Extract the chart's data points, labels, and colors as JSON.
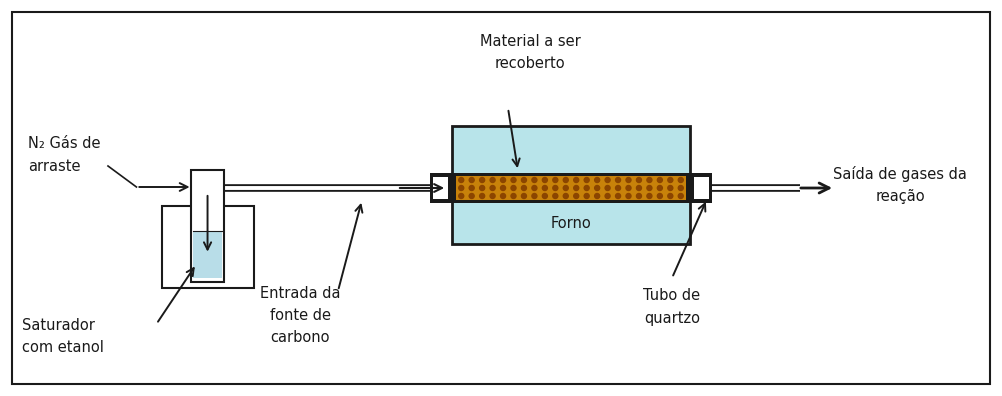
{
  "bg_color": "#ffffff",
  "border_color": "#333333",
  "light_blue": "#b8e4ea",
  "dark_brown": "#c8820a",
  "dark_gray": "#1a1a1a",
  "saturator_liquid": "#b8dde8",
  "fig_width": 10.02,
  "fig_height": 3.96,
  "labels": {
    "n2_gas_line1": "N₂ Gás de",
    "n2_gas_line2": "arraste",
    "saturador_line1": "Saturador",
    "saturador_line2": "com etanol",
    "entrada_line1": "Entrada da",
    "entrada_line2": "fonte de",
    "entrada_line3": "carbono",
    "material_line1": "Material a ser",
    "material_line2": "recoberto",
    "forno": "Forno",
    "tubo_line1": "Tubo de",
    "tubo_line2": "quartzo",
    "saida_line1": "Saída de gases da",
    "saida_line2": "reação"
  },
  "fontsize": 10.5
}
